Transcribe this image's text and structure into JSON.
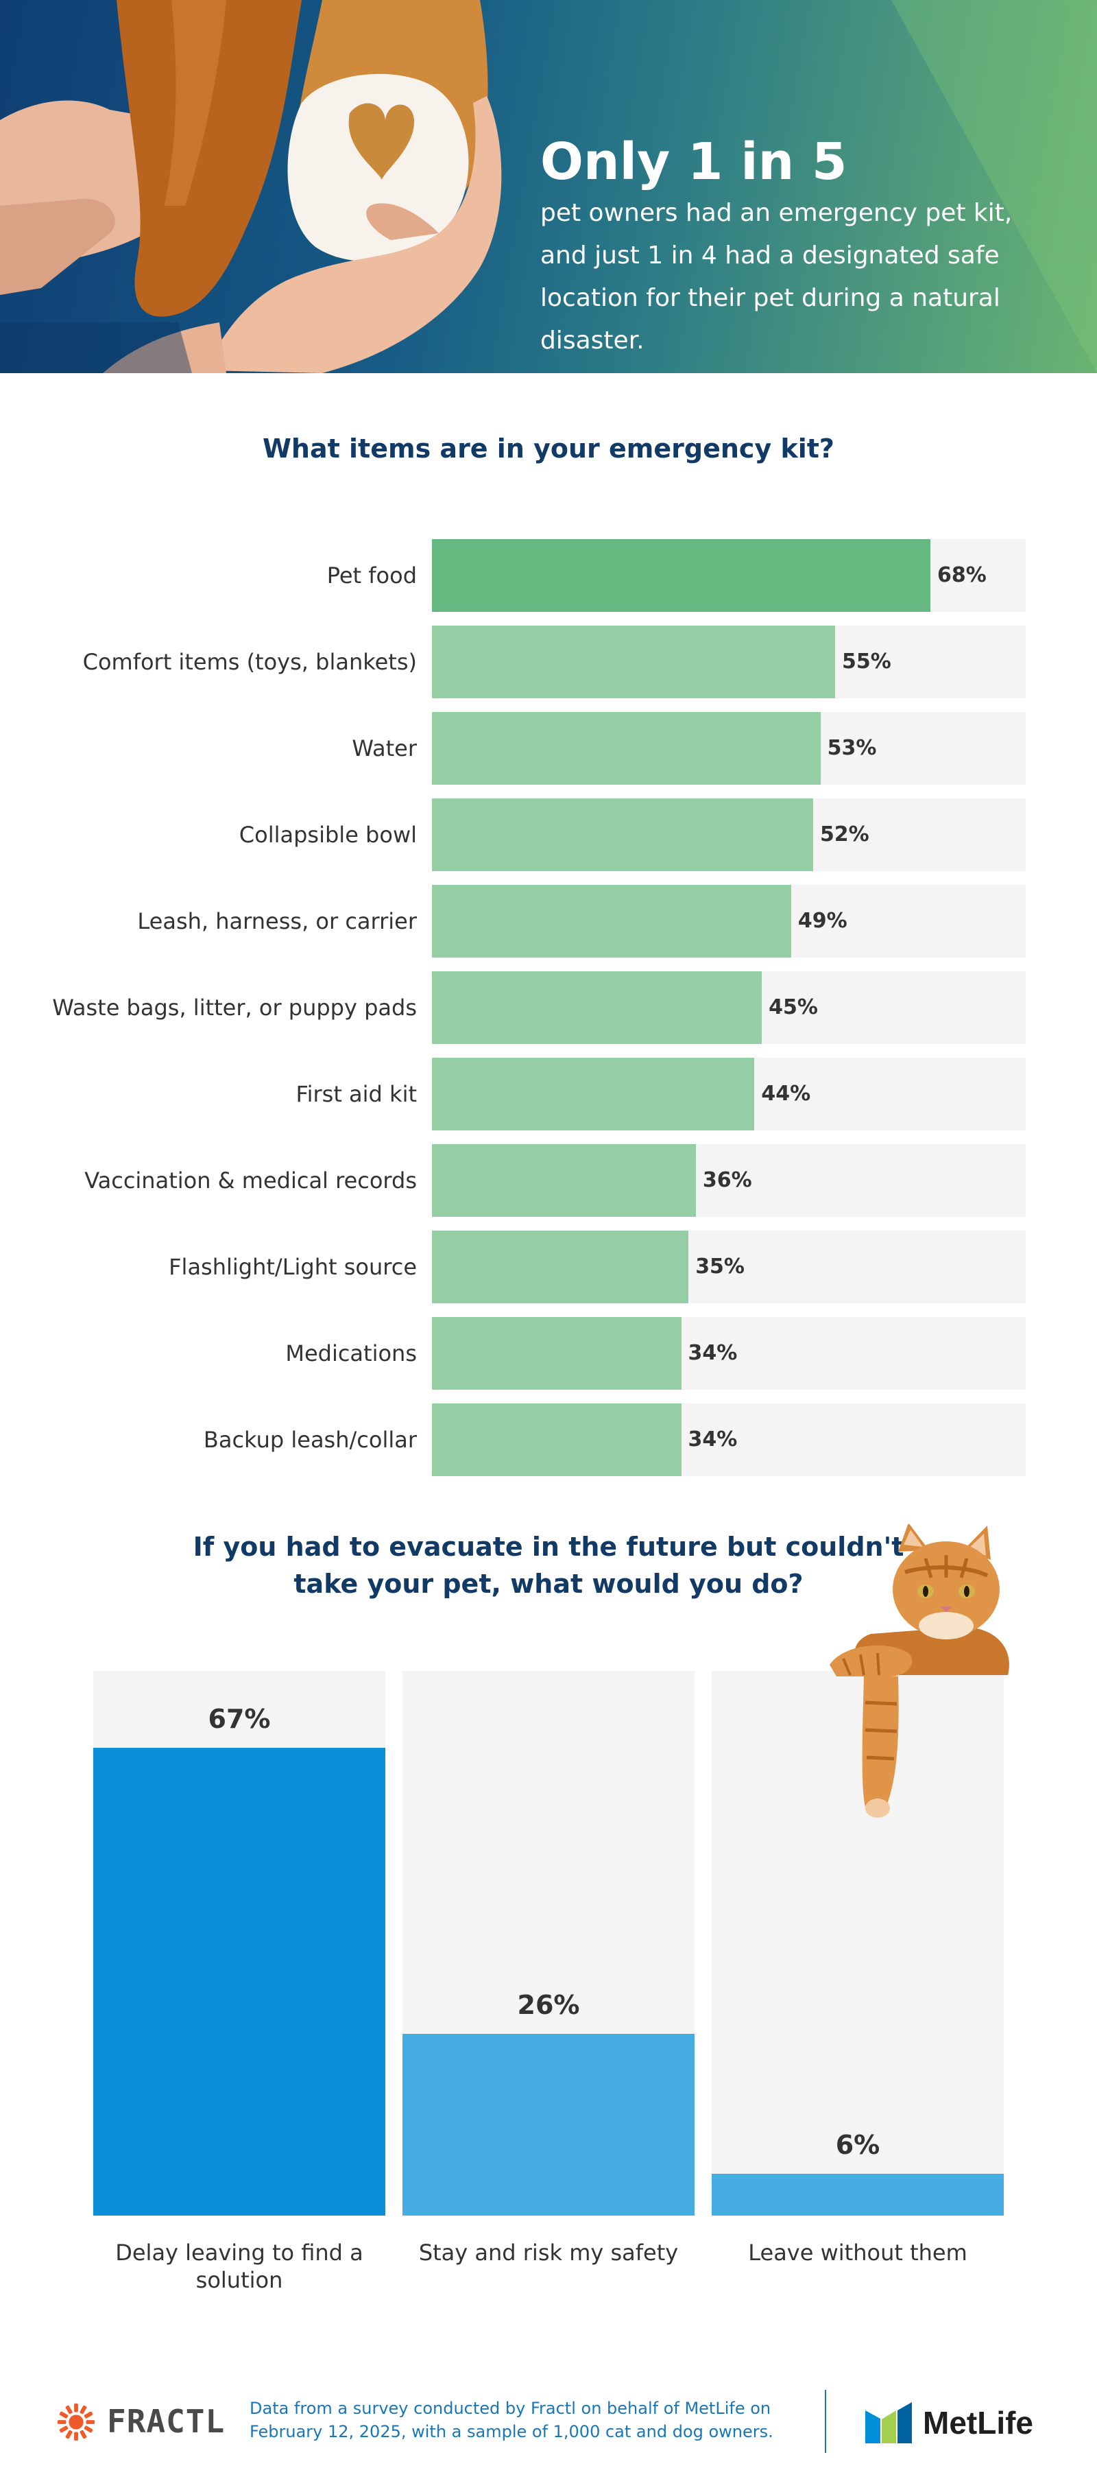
{
  "hero": {
    "stat": "Only 1 in 5",
    "text": "pet owners had an emergency pet kit, and just 1 in 4 had a designated safe location for their pet during a natural disaster."
  },
  "chart_data": [
    {
      "type": "bar",
      "orientation": "horizontal",
      "title": "What items are in your emergency kit?",
      "categories": [
        "Pet food",
        "Comfort items (toys, blankets)",
        "Water",
        "Collapsible bowl",
        "Leash, harness, or carrier",
        "Waste bags, litter, or puppy pads",
        "First aid kit",
        "Vaccination & medical records",
        "Flashlight/Light source",
        "Medications",
        "Backup leash/collar"
      ],
      "values": [
        68,
        55,
        53,
        52,
        49,
        45,
        44,
        36,
        35,
        34,
        34
      ],
      "labels": [
        "68%",
        "55%",
        "53%",
        "52%",
        "49%",
        "45%",
        "44%",
        "36%",
        "35%",
        "34%",
        "34%"
      ],
      "xlim": [
        0,
        81
      ],
      "highlight_color": "#66b881",
      "bar_color": "#95cda4",
      "track_color": "#f4f4f4"
    },
    {
      "type": "bar",
      "orientation": "vertical",
      "title": "If you had to evacuate in the future but couldn't take your pet, what would you do?",
      "categories": [
        "Delay leaving to find a solution",
        "Stay and risk my safety",
        "Leave without them"
      ],
      "values": [
        67,
        26,
        6
      ],
      "labels": [
        "67%",
        "26%",
        "6%"
      ],
      "ylim": [
        0,
        78
      ],
      "highlight_color": "#0a8fd8",
      "bar_color": "#45ade2",
      "track_color": "#f4f4f4"
    }
  ],
  "footer": {
    "source": "Data from a survey conducted by Fractl on behalf of MetLife on February 12, 2025, with a sample of 1,000 cat and dog owners.",
    "fractl_logo": "FRACTL",
    "metlife_logo": "MetLife"
  },
  "icons": {
    "fractl": "sunburst-icon",
    "metlife": "metlife-m-icon"
  },
  "colors": {
    "title_navy": "#123a66",
    "link_blue": "#1976b8"
  }
}
